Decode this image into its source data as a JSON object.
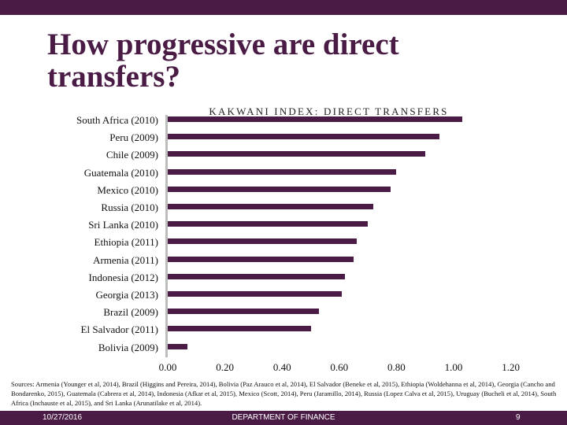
{
  "slide": {
    "title": "How progressive are direct transfers?",
    "sources": "Sources: Armenia (Younger et al, 2014), Brazil (Higgins and Pereira, 2014), Bolivia (Paz Arauco et al, 2014), El Salvador (Beneke et al, 2015), Ethiopia (Woldehanna et al, 2014), Georgia (Cancho and Bondarenko, 2015), Guatemala (Cabrera et al, 2014), Indonesia (Afkar et al, 2015), Mexico (Scott, 2014), Peru (Jaramillo, 2014), Russia (Lopez Calva et al, 2015), Uruguay (Bucheli et al, 2014), South Africa (Inchauste et al, 2015), and Sri Lanka (Arunatilake et al, 2014).",
    "footer": {
      "date": "10/27/2016",
      "department": "DEPARTMENT OF FINANCE",
      "page": "9"
    },
    "colors": {
      "brand": "#4a1c45",
      "axis": "#bdbdbd"
    }
  },
  "chart_data": {
    "type": "bar",
    "orientation": "horizontal",
    "title": "KAKWANI INDEX: DIRECT TRANSFERS",
    "xlabel": "",
    "ylabel": "",
    "xlim": [
      0,
      1.2
    ],
    "x_ticks": [
      "0.00",
      "0.20",
      "0.40",
      "0.60",
      "0.80",
      "1.00",
      "1.20"
    ],
    "grid": false,
    "legend": null,
    "categories": [
      "South Africa (2010)",
      "Peru (2009)",
      "Chile (2009)",
      "Guatemala (2010)",
      "Mexico (2010)",
      "Russia (2010)",
      "Sri Lanka (2010)",
      "Ethiopia (2011)",
      "Armenia (2011)",
      "Indonesia (2012)",
      "Georgia (2013)",
      "Brazil (2009)",
      "El Salvador (2011)",
      "Bolivia (2009)"
    ],
    "values": [
      1.03,
      0.95,
      0.9,
      0.8,
      0.78,
      0.72,
      0.7,
      0.66,
      0.65,
      0.62,
      0.61,
      0.53,
      0.5,
      0.07
    ]
  }
}
